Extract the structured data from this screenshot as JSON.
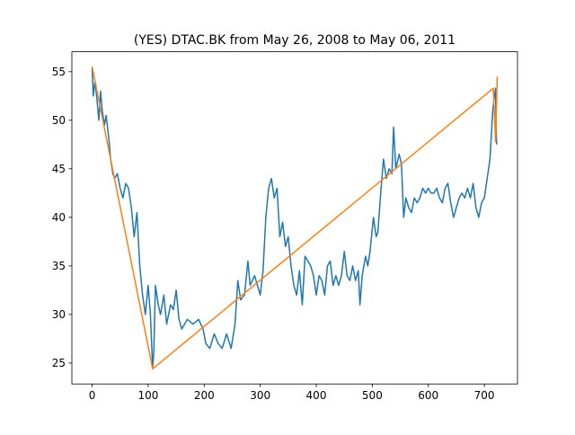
{
  "chart_data": {
    "type": "line",
    "title": "(YES) DTAC.BK from May 26, 2008 to May 06, 2011",
    "xlim": [
      -36.15,
      759.15
    ],
    "xticks": [
      0,
      100,
      200,
      300,
      400,
      500,
      600,
      700
    ],
    "ylim": [
      22.845,
      57.055
    ],
    "yticks": [
      25,
      30,
      35,
      40,
      45,
      50,
      55
    ],
    "grid": false,
    "series": [
      {
        "color": "#1f77b4",
        "x": [
          0,
          2,
          5,
          8,
          12,
          15,
          18,
          22,
          25,
          30,
          33,
          37,
          40,
          45,
          50,
          55,
          60,
          65,
          70,
          75,
          80,
          85,
          90,
          95,
          100,
          104,
          108,
          110,
          113,
          118,
          122,
          128,
          133,
          140,
          145,
          150,
          155,
          160,
          170,
          180,
          190,
          198,
          203,
          210,
          218,
          225,
          232,
          240,
          248,
          255,
          260,
          265,
          272,
          278,
          282,
          290,
          295,
          300,
          305,
          310,
          315,
          320,
          325,
          330,
          335,
          340,
          345,
          350,
          355,
          360,
          365,
          370,
          375,
          380,
          385,
          390,
          395,
          400,
          405,
          410,
          415,
          420,
          425,
          430,
          435,
          440,
          445,
          450,
          455,
          460,
          465,
          470,
          475,
          478,
          482,
          488,
          492,
          496,
          502,
          507,
          510,
          515,
          520,
          525,
          530,
          535,
          538,
          542,
          548,
          552,
          556,
          560,
          565,
          570,
          575,
          580,
          585,
          590,
          595,
          600,
          605,
          610,
          615,
          620,
          625,
          630,
          635,
          640,
          645,
          650,
          655,
          660,
          665,
          670,
          675,
          680,
          685,
          690,
          695,
          700,
          705,
          710,
          715,
          718,
          720,
          721,
          722
        ],
        "values": [
          55.5,
          52.5,
          54,
          52.5,
          50,
          53,
          51,
          49.5,
          50.5,
          48,
          46,
          44.5,
          44,
          44.5,
          43,
          42,
          43.5,
          43,
          41,
          38,
          40.5,
          35,
          32,
          30,
          33,
          30,
          24.5,
          26,
          33,
          31,
          30,
          32,
          29,
          31,
          30.5,
          32.5,
          29.5,
          28.5,
          29.5,
          29,
          29.5,
          28.5,
          27,
          26.5,
          28,
          27,
          26.5,
          28,
          26.5,
          29,
          33.5,
          31.5,
          32,
          35.5,
          33,
          34,
          33,
          32,
          34.5,
          40,
          43,
          44,
          42,
          43,
          38,
          39.5,
          37,
          38,
          35,
          33,
          32,
          34.5,
          31,
          36,
          35.5,
          35,
          34,
          32,
          34,
          33.5,
          32,
          35,
          35.5,
          33,
          34,
          33,
          34,
          36.5,
          34,
          33.5,
          35,
          33.5,
          34.5,
          31,
          34,
          36,
          35,
          36.5,
          40,
          38,
          38.5,
          42.5,
          46,
          44,
          45,
          44.5,
          49.3,
          45,
          46.5,
          45.5,
          40,
          42,
          41,
          40.5,
          42,
          41.5,
          42,
          43,
          42.5,
          43,
          42.5,
          42.5,
          43,
          42,
          41.5,
          43,
          43.5,
          41.5,
          40,
          41,
          42,
          42.5,
          42,
          43,
          42,
          43.5,
          41,
          40,
          41.5,
          42,
          44,
          46,
          51,
          52.5,
          53.3,
          49,
          47.5
        ]
      },
      {
        "color": "#ff7f0e",
        "x": [
          0,
          108,
          716,
          720,
          723
        ],
        "values": [
          55.5,
          24.4,
          53.3,
          47.8,
          54.5
        ]
      }
    ]
  }
}
